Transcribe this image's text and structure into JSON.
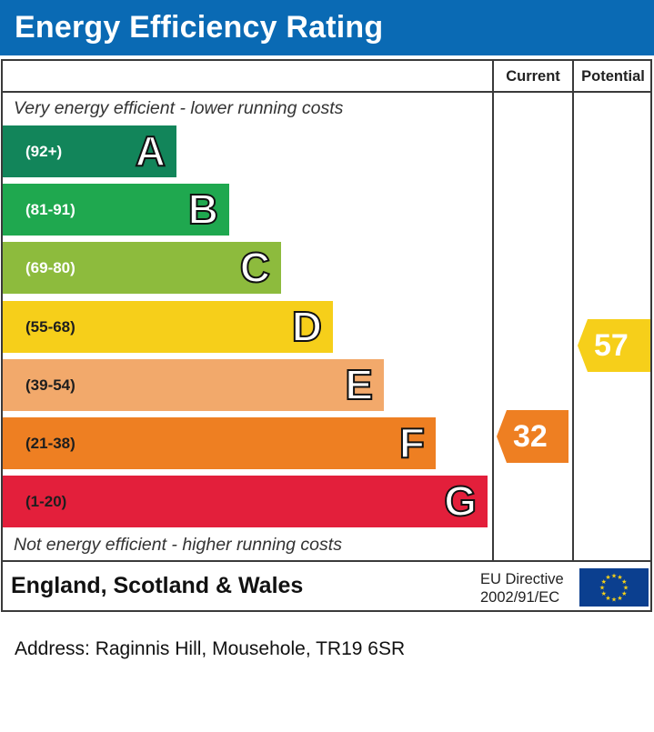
{
  "title": "Energy Efficiency Rating",
  "headers": {
    "current": "Current",
    "potential": "Potential"
  },
  "notes": {
    "top": "Very energy efficient - lower running costs",
    "bottom": "Not energy efficient - higher running costs"
  },
  "chart_data": {
    "type": "bar",
    "title": "Energy Efficiency Rating",
    "categories": [
      "A",
      "B",
      "C",
      "D",
      "E",
      "F",
      "G"
    ],
    "ranges": [
      "(92+)",
      "(81-91)",
      "(69-80)",
      "(55-68)",
      "(39-54)",
      "(21-38)",
      "(1-20)"
    ],
    "colors": [
      "#12855a",
      "#1fa84f",
      "#8dbb3d",
      "#f6cf1a",
      "#f2a96b",
      "#ee7f22",
      "#e31f3b"
    ],
    "current": {
      "value": 32,
      "band": "F",
      "color": "#ee7f22"
    },
    "potential": {
      "value": 57,
      "band": "D",
      "color": "#f6cf1a"
    }
  },
  "footer": {
    "country": "England, Scotland & Wales",
    "directive_line1": "EU Directive",
    "directive_line2": "2002/91/EC",
    "flag_color": "#0b3f8f",
    "star_color": "#f7d117"
  },
  "address": "Address: Raginnis Hill, Mousehole, TR19 6SR"
}
